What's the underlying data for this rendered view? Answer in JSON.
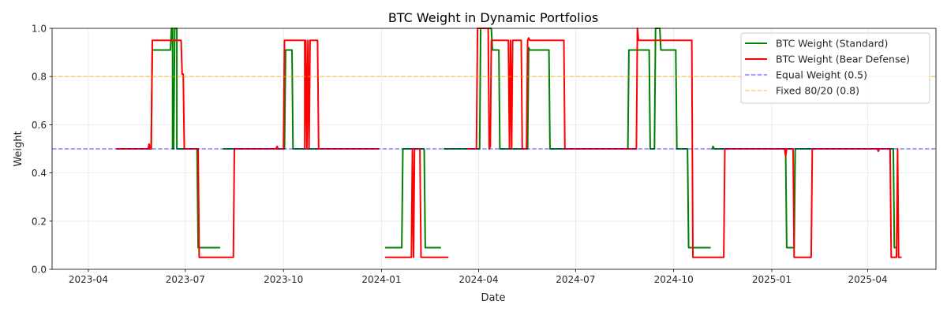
{
  "chart_data": {
    "type": "line",
    "title": "BTC Weight in Dynamic Portfolios",
    "xlabel": "Date",
    "ylabel": "Weight",
    "xlim": [
      -34,
      795
    ],
    "ylim": [
      0,
      1
    ],
    "x_ticks": [
      {
        "value": 0,
        "label": "2023-04"
      },
      {
        "value": 91,
        "label": "2023-07"
      },
      {
        "value": 183,
        "label": "2023-10"
      },
      {
        "value": 275,
        "label": "2024-01"
      },
      {
        "value": 366,
        "label": "2024-04"
      },
      {
        "value": 457,
        "label": "2024-07"
      },
      {
        "value": 549,
        "label": "2024-10"
      },
      {
        "value": 641,
        "label": "2025-01"
      },
      {
        "value": 731,
        "label": "2025-04"
      }
    ],
    "y_ticks": [
      {
        "value": 0.0,
        "label": "0.0"
      },
      {
        "value": 0.2,
        "label": "0.2"
      },
      {
        "value": 0.4,
        "label": "0.4"
      },
      {
        "value": 0.6,
        "label": "0.6"
      },
      {
        "value": 0.8,
        "label": "0.8"
      },
      {
        "value": 1.0,
        "label": "1.0"
      }
    ],
    "grid": true,
    "legend_position": "top-right",
    "series": [
      {
        "name": "BTC Weight (Standard)",
        "color": "#008000",
        "style": "solid",
        "segments": [
          [
            [
              27,
              0.5
            ],
            [
              59,
              0.5
            ],
            [
              60,
              0.91
            ],
            [
              77,
              0.91
            ],
            [
              78,
              1.0
            ],
            [
              79,
              1.0
            ],
            [
              79,
              0.5
            ],
            [
              80,
              0.5
            ],
            [
              81,
              1.0
            ],
            [
              83,
              1.0
            ],
            [
              83,
              0.5
            ],
            [
              102,
              0.5
            ],
            [
              103,
              0.09
            ],
            [
              123,
              0.09
            ]
          ],
          [
            [
              127,
              0.5
            ],
            [
              184,
              0.5
            ],
            [
              185,
              0.91
            ],
            [
              191,
              0.91
            ],
            [
              192,
              0.5
            ],
            [
              271,
              0.5
            ]
          ],
          [
            [
              279,
              0.09
            ],
            [
              294,
              0.09
            ],
            [
              295,
              0.5
            ],
            [
              315,
              0.5
            ],
            [
              316,
              0.09
            ],
            [
              330,
              0.09
            ]
          ],
          [
            [
              334,
              0.5
            ],
            [
              367,
              0.5
            ],
            [
              368,
              1.0
            ],
            [
              378,
              1.0
            ],
            [
              379,
              0.91
            ],
            [
              385,
              0.91
            ],
            [
              386,
              0.5
            ],
            [
              412,
              0.5
            ],
            [
              413,
              0.92
            ],
            [
              414,
              0.91
            ],
            [
              432,
              0.91
            ],
            [
              433,
              0.5
            ],
            [
              506,
              0.5
            ],
            [
              507,
              0.91
            ],
            [
              526,
              0.91
            ],
            [
              527,
              0.5
            ],
            [
              531,
              0.5
            ],
            [
              532,
              1.0
            ],
            [
              536,
              1.0
            ],
            [
              537,
              0.91
            ],
            [
              551,
              0.91
            ],
            [
              552,
              0.5
            ],
            [
              562,
              0.5
            ],
            [
              563,
              0.09
            ],
            [
              583,
              0.09
            ]
          ],
          [
            [
              585,
              0.5
            ],
            [
              586,
              0.51
            ],
            [
              587,
              0.5
            ],
            [
              654,
              0.5
            ],
            [
              655,
              0.09
            ],
            [
              662,
              0.09
            ],
            [
              663,
              0.5
            ],
            [
              755,
              0.5
            ],
            [
              756,
              0.09
            ],
            [
              758,
              0.09
            ]
          ]
        ]
      },
      {
        "name": "BTC Weight (Bear Defense)",
        "color": "#ff0000",
        "style": "solid",
        "segments": [
          [
            [
              27,
              0.5
            ],
            [
              56,
              0.5
            ],
            [
              57,
              0.52
            ],
            [
              58,
              0.5
            ],
            [
              59,
              0.5
            ],
            [
              60,
              0.95
            ],
            [
              87,
              0.95
            ],
            [
              88,
              0.81
            ],
            [
              89,
              0.81
            ],
            [
              90,
              0.5
            ],
            [
              103,
              0.5
            ],
            [
              104,
              0.05
            ],
            [
              136,
              0.05
            ],
            [
              137,
              0.5
            ],
            [
              176,
              0.5
            ],
            [
              177,
              0.51
            ],
            [
              178,
              0.5
            ],
            [
              183,
              0.5
            ],
            [
              184,
              0.95
            ],
            [
              203,
              0.95
            ],
            [
              203,
              0.5
            ],
            [
              204,
              0.95
            ],
            [
              205,
              0.5
            ],
            [
              206,
              0.95
            ],
            [
              207,
              0.5
            ],
            [
              208,
              0.95
            ],
            [
              215,
              0.95
            ],
            [
              216,
              0.5
            ],
            [
              272,
              0.5
            ]
          ],
          [
            [
              279,
              0.05
            ],
            [
              303,
              0.05
            ],
            [
              304,
              0.5
            ],
            [
              305,
              0.05
            ],
            [
              306,
              0.5
            ],
            [
              311,
              0.5
            ],
            [
              312,
              0.05
            ],
            [
              337,
              0.05
            ]
          ],
          [
            [
              356,
              0.5
            ],
            [
              364,
              0.5
            ],
            [
              365,
              1.0
            ],
            [
              375,
              1.0
            ],
            [
              376,
              0.5
            ],
            [
              377,
              0.51
            ],
            [
              378,
              0.95
            ],
            [
              394,
              0.95
            ],
            [
              395,
              0.5
            ],
            [
              396,
              0.95
            ],
            [
              397,
              0.5
            ],
            [
              398,
              0.95
            ],
            [
              406,
              0.95
            ],
            [
              407,
              0.5
            ],
            [
              411,
              0.5
            ],
            [
              412,
              0.95
            ],
            [
              413,
              0.96
            ],
            [
              414,
              0.95
            ],
            [
              446,
              0.95
            ],
            [
              447,
              0.5
            ],
            [
              514,
              0.5
            ],
            [
              515,
              1.0
            ],
            [
              516,
              0.95
            ],
            [
              566,
              0.95
            ],
            [
              567,
              0.05
            ],
            [
              596,
              0.05
            ],
            [
              597,
              0.5
            ],
            [
              653,
              0.5
            ],
            [
              654,
              0.47
            ],
            [
              655,
              0.5
            ],
            [
              661,
              0.5
            ],
            [
              662,
              0.05
            ],
            [
              678,
              0.05
            ],
            [
              679,
              0.5
            ],
            [
              740,
              0.5
            ],
            [
              741,
              0.49
            ],
            [
              742,
              0.5
            ],
            [
              752,
              0.5
            ],
            [
              753,
              0.05
            ],
            [
              758,
              0.05
            ],
            [
              759,
              0.5
            ],
            [
              760,
              0.05
            ],
            [
              762,
              0.05
            ]
          ]
        ]
      },
      {
        "name": "Equal Weight (0.5)",
        "color": "#0000ff",
        "style": "dashed",
        "y": 0.5
      },
      {
        "name": "Fixed 80/20 (0.8)",
        "color": "#ffa500",
        "style": "dashed",
        "y": 0.8
      }
    ]
  }
}
